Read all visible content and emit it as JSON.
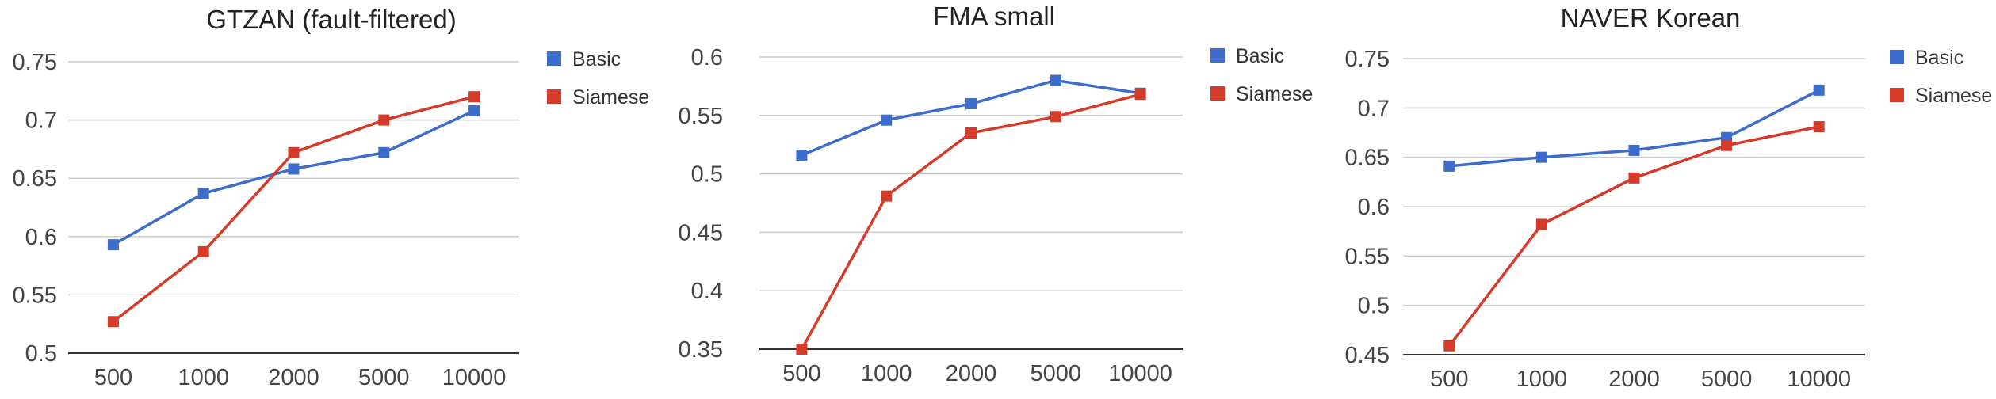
{
  "colors": {
    "Basic": "#3d6ccc",
    "Siamese": "#d63b2a"
  },
  "chart_data": [
    {
      "type": "line",
      "title": "GTZAN (fault-filtered)",
      "categories": [
        "500",
        "1000",
        "2000",
        "5000",
        "10000"
      ],
      "yticks": [
        "0.5",
        "0.55",
        "0.6",
        "0.65",
        "0.7",
        "0.75"
      ],
      "ylim": [
        0.5,
        0.75
      ],
      "grid": true,
      "legend": "right",
      "series": [
        {
          "name": "Basic",
          "values": [
            0.593,
            0.637,
            0.658,
            0.672,
            0.708
          ]
        },
        {
          "name": "Siamese",
          "values": [
            0.527,
            0.587,
            0.672,
            0.7,
            0.72
          ]
        }
      ]
    },
    {
      "type": "line",
      "title": "FMA small",
      "categories": [
        "500",
        "1000",
        "2000",
        "5000",
        "10000"
      ],
      "yticks": [
        "0.35",
        "0.4",
        "0.45",
        "0.5",
        "0.55",
        "0.6"
      ],
      "ylim": [
        0.35,
        0.6
      ],
      "grid": true,
      "legend": "right",
      "series": [
        {
          "name": "Basic",
          "values": [
            0.516,
            0.546,
            0.56,
            0.58,
            0.569
          ]
        },
        {
          "name": "Siamese",
          "values": [
            0.35,
            0.481,
            0.535,
            0.549,
            0.568
          ]
        }
      ]
    },
    {
      "type": "line",
      "title": "NAVER Korean",
      "categories": [
        "500",
        "1000",
        "2000",
        "5000",
        "10000"
      ],
      "yticks": [
        "0.45",
        "0.5",
        "0.55",
        "0.6",
        "0.65",
        "0.7",
        "0.75"
      ],
      "ylim": [
        0.45,
        0.75
      ],
      "grid": true,
      "legend": "right",
      "series": [
        {
          "name": "Basic",
          "values": [
            0.641,
            0.65,
            0.657,
            0.67,
            0.718
          ]
        },
        {
          "name": "Siamese",
          "values": [
            0.459,
            0.582,
            0.629,
            0.662,
            0.681
          ]
        }
      ]
    }
  ]
}
